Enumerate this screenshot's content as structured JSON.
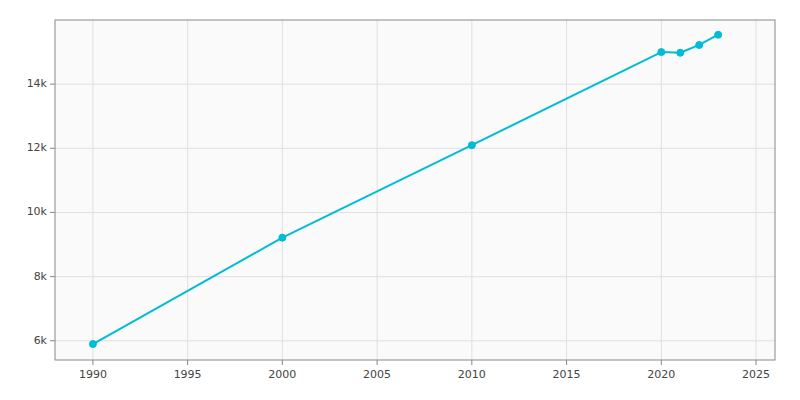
{
  "chart_data": {
    "type": "line",
    "x": [
      1990,
      2000,
      2010,
      2020,
      2021,
      2022,
      2023
    ],
    "values": [
      5897,
      9215,
      12097,
      15000,
      14978,
      15222,
      15541
    ],
    "color": "#00BCD4",
    "marker": "circle",
    "line_style": "solid",
    "xlim": [
      1988,
      2026
    ],
    "ylim": [
      5400,
      16000
    ],
    "xticks": [
      1990,
      1995,
      2000,
      2005,
      2010,
      2015,
      2020,
      2025
    ],
    "yticks": [
      {
        "value": 6000,
        "label": "6k"
      },
      {
        "value": 8000,
        "label": "8k"
      },
      {
        "value": 10000,
        "label": "10k"
      },
      {
        "value": 12000,
        "label": "12k"
      },
      {
        "value": 14000,
        "label": "14k"
      }
    ],
    "grid": true
  }
}
